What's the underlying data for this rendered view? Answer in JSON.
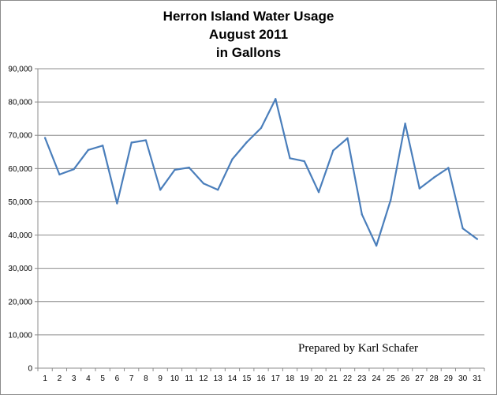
{
  "chart_data": {
    "type": "line",
    "title_lines": [
      "Herron Island Water Usage",
      "August 2011",
      "in Gallons"
    ],
    "annotation": "Prepared by Karl Schafer",
    "x": [
      1,
      2,
      3,
      4,
      5,
      6,
      7,
      8,
      9,
      10,
      11,
      12,
      13,
      14,
      15,
      16,
      17,
      18,
      19,
      20,
      21,
      22,
      23,
      24,
      25,
      26,
      27,
      28,
      29,
      30,
      31
    ],
    "series": [
      {
        "values": [
          69200,
          58200,
          59800,
          65600,
          66900,
          49500,
          67800,
          68500,
          53600,
          59600,
          60300,
          55500,
          53600,
          62800,
          67900,
          72200,
          80900,
          63100,
          62200,
          52900,
          65400,
          69100,
          46200,
          36800,
          50600,
          73500,
          54000,
          57300,
          60200,
          42000,
          38800
        ],
        "color": "#4a7ebb"
      }
    ],
    "ylim": [
      0,
      90000
    ],
    "y_ticks": [
      "0",
      "10,000",
      "20,000",
      "30,000",
      "40,000",
      "50,000",
      "60,000",
      "70,000",
      "80,000",
      "90,000"
    ],
    "grid": true
  }
}
